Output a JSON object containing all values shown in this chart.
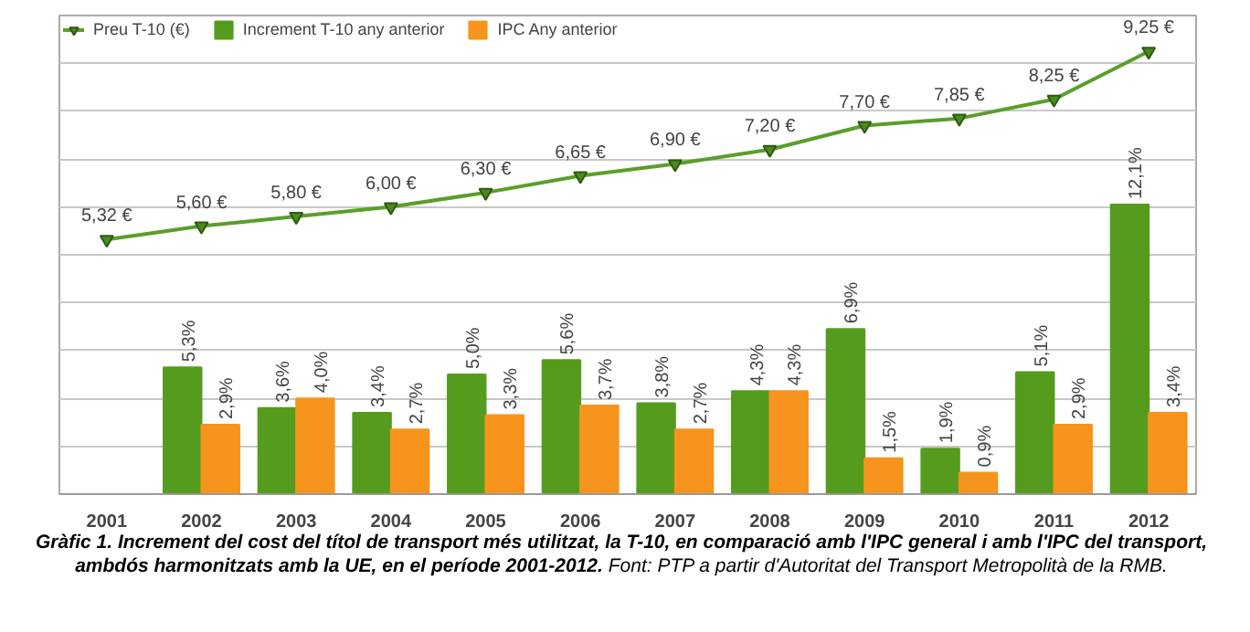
{
  "chart_data": {
    "type": "bar",
    "categories": [
      "2001",
      "2002",
      "2003",
      "2004",
      "2005",
      "2006",
      "2007",
      "2008",
      "2009",
      "2010",
      "2011",
      "2012"
    ],
    "series": [
      {
        "name": "Preu T-10 (€)",
        "type": "line",
        "axis": "y2",
        "color": "#5a9e2a",
        "marker": "triangle",
        "values": [
          5.32,
          5.6,
          5.8,
          6.0,
          6.3,
          6.65,
          6.9,
          7.2,
          7.7,
          7.85,
          8.25,
          9.25
        ],
        "value_labels": [
          "5,32 €",
          "5,60 €",
          "5,80 €",
          "6,00 €",
          "6,30 €",
          "6,65 €",
          "6,90 €",
          "7,20 €",
          "7,70 €",
          "7,85 €",
          "8,25 €",
          "9,25 €"
        ]
      },
      {
        "name": "Increment T-10 any anterior",
        "color": "#559c1e",
        "values": [
          null,
          5.3,
          3.6,
          3.4,
          5.0,
          5.6,
          3.8,
          4.3,
          6.9,
          1.9,
          5.1,
          12.1
        ],
        "value_labels": [
          null,
          "5,3%",
          "3,6%",
          "3,4%",
          "5,0%",
          "5,6%",
          "3,8%",
          "4,3%",
          "6,9%",
          "1,9%",
          "5,1%",
          "12,1%"
        ]
      },
      {
        "name": "IPC Any anterior",
        "color": "#f7941d",
        "values": [
          null,
          2.9,
          4.0,
          2.7,
          3.3,
          3.7,
          2.7,
          4.3,
          1.5,
          0.9,
          2.9,
          3.4
        ],
        "value_labels": [
          null,
          "2,9%",
          "4,0%",
          "2,7%",
          "3,3%",
          "3,7%",
          "2,7%",
          "4,3%",
          "1,5%",
          "0,9%",
          "2,9%",
          "3,4%"
        ]
      }
    ],
    "ylim": [
      0,
      20
    ],
    "yticks": [
      {
        "value": 0,
        "label": null
      },
      {
        "value": 2,
        "label": null
      },
      {
        "value": 4,
        "label": null
      },
      {
        "value": 6,
        "label": null
      },
      {
        "value": 8,
        "label": null
      },
      {
        "value": 10,
        "label": null
      },
      {
        "value": 12,
        "label": null
      },
      {
        "value": 14,
        "label": null
      },
      {
        "value": 16,
        "label": null
      },
      {
        "value": 18,
        "label": null
      },
      {
        "value": 20,
        "label": null
      }
    ],
    "y2lim": [
      0,
      10
    ],
    "tick_labels": "x",
    "grid": "y",
    "legend": "top left",
    "annotations": [
      "Gràfic 1. Increment del cost del títol de transport més utilitzat, la T-10, en comparació amb l'IPC general i amb l'IPC del transport, ambdós harmonitzats amb la UE, en el període 2001-2012.",
      "Font: PTP a partir d'Autoritat del Transport Metropolità de la RMB."
    ]
  }
}
